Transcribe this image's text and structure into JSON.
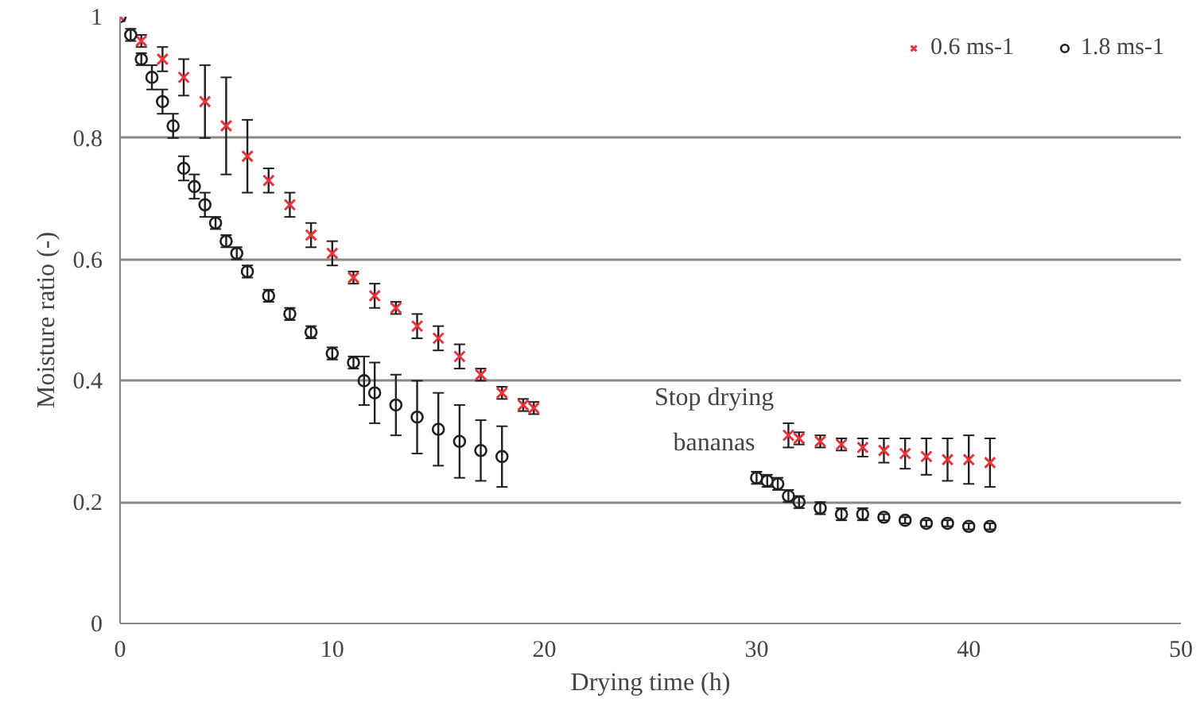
{
  "chart_data": {
    "type": "scatter",
    "xlabel": "Drying time (h)",
    "ylabel": "Moisture ratio (-)",
    "xlim": [
      0,
      50
    ],
    "xticks": [
      0,
      10,
      20,
      30,
      40,
      50
    ],
    "ylim": [
      0,
      1
    ],
    "yticks": [
      0,
      0.2,
      0.4,
      0.6,
      0.8,
      1
    ],
    "grid": "y",
    "legend": "top right",
    "annotations": [
      "Stop drying bananas"
    ],
    "series": [
      {
        "name": "0.6 ms-1",
        "color": "#e8343a",
        "marker": "cross",
        "x": [
          0,
          1,
          2,
          3,
          4,
          5,
          6,
          7,
          8,
          9,
          10,
          11,
          12,
          13,
          14,
          15,
          16,
          17,
          18,
          19,
          19.5,
          31.5,
          32,
          33,
          34,
          35,
          36,
          37,
          38,
          39,
          40,
          41
        ],
        "values": [
          1.0,
          0.96,
          0.93,
          0.9,
          0.86,
          0.82,
          0.77,
          0.73,
          0.69,
          0.64,
          0.61,
          0.57,
          0.54,
          0.52,
          0.49,
          0.47,
          0.44,
          0.41,
          0.38,
          0.36,
          0.355,
          0.31,
          0.305,
          0.3,
          0.295,
          0.29,
          0.285,
          0.28,
          0.275,
          0.27,
          0.27,
          0.265
        ],
        "errors": [
          null,
          0.01,
          0.02,
          0.03,
          0.06,
          0.08,
          0.06,
          0.02,
          0.02,
          0.02,
          0.02,
          0.01,
          0.02,
          0.01,
          0.02,
          0.02,
          0.02,
          0.01,
          0.01,
          0.01,
          0.01,
          0.02,
          0.01,
          0.01,
          0.01,
          0.015,
          0.02,
          0.025,
          0.03,
          0.035,
          0.04,
          0.04
        ]
      },
      {
        "name": "1.8 ms-1",
        "color": "#231f20",
        "marker": "circle",
        "x": [
          0,
          0.5,
          1,
          1.5,
          2,
          2.5,
          3,
          3.5,
          4,
          4.5,
          5,
          5.5,
          6,
          7,
          8,
          9,
          10,
          11,
          11.5,
          12,
          13,
          14,
          15,
          16,
          17,
          18,
          30,
          30.5,
          31,
          31.5,
          32,
          33,
          34,
          35,
          36,
          37,
          38,
          39,
          40,
          41
        ],
        "values": [
          1.0,
          0.97,
          0.93,
          0.9,
          0.86,
          0.82,
          0.75,
          0.72,
          0.69,
          0.66,
          0.63,
          0.61,
          0.58,
          0.54,
          0.51,
          0.48,
          0.445,
          0.43,
          0.4,
          0.38,
          0.36,
          0.34,
          0.32,
          0.3,
          0.285,
          0.275,
          0.24,
          0.235,
          0.23,
          0.21,
          0.2,
          0.19,
          0.18,
          0.18,
          0.175,
          0.17,
          0.165,
          0.165,
          0.16,
          0.16
        ],
        "errors": [
          null,
          0.01,
          0.01,
          0.02,
          0.02,
          0.02,
          0.02,
          0.02,
          0.02,
          0.01,
          0.01,
          0.01,
          0.01,
          0.01,
          0.01,
          0.01,
          0.01,
          0.01,
          0.04,
          0.05,
          0.05,
          0.06,
          0.06,
          0.06,
          0.05,
          0.05,
          0.01,
          0.01,
          0.01,
          0.01,
          0.01,
          0.01,
          0.01,
          0.01,
          0.005,
          0.005,
          0.005,
          0.005,
          0.005,
          0.005
        ]
      }
    ]
  }
}
